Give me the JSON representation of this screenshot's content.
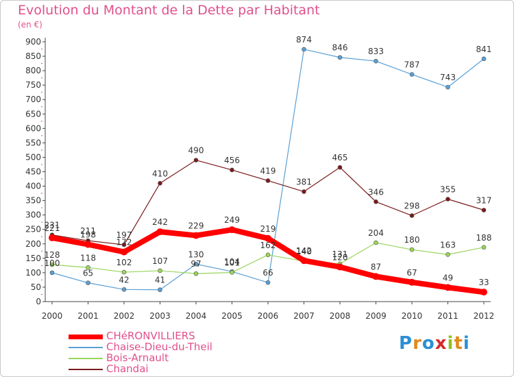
{
  "title": "Evolution du Montant de la Dette par Habitant",
  "subtitle": "(en €)",
  "logo_text": "Proxiti",
  "logo_colors": [
    "#2a8fd6",
    "#e08a1e",
    "#2a8fd6",
    "#d62a2a",
    "#8fc21e",
    "#e08a1e",
    "#2a8fd6"
  ],
  "chart_data": {
    "type": "line",
    "x": [
      "2000",
      "2001",
      "2002",
      "2003",
      "2004",
      "2005",
      "2006",
      "2007",
      "2008",
      "2009",
      "2010",
      "2011",
      "2012"
    ],
    "ylim": [
      0,
      900
    ],
    "yticks": [
      0,
      50,
      100,
      150,
      200,
      250,
      300,
      350,
      400,
      450,
      500,
      550,
      600,
      650,
      700,
      750,
      800,
      850,
      900
    ],
    "grid": false,
    "legend_position": "bottom-left",
    "series": [
      {
        "name": "CHéRONVILLIERS",
        "color": "#ff0000",
        "values": [
          221,
          198,
          172,
          242,
          229,
          249,
          219,
          142,
          120,
          87,
          67,
          49,
          33
        ]
      },
      {
        "name": "Chaise-Dieu-du-Theil",
        "color": "#5a9fd4",
        "values": [
          100,
          65,
          42,
          41,
          130,
          104,
          66,
          874,
          846,
          833,
          787,
          743,
          841
        ]
      },
      {
        "name": "Bois-Arnault",
        "color": "#99d45a",
        "values": [
          128,
          118,
          102,
          107,
          97,
          101,
          162,
          140,
          131,
          204,
          180,
          163,
          188
        ]
      },
      {
        "name": "Chandai",
        "color": "#7a1a1a",
        "values": [
          231,
          211,
          197,
          410,
          490,
          456,
          419,
          381,
          465,
          346,
          298,
          355,
          317
        ]
      }
    ]
  }
}
